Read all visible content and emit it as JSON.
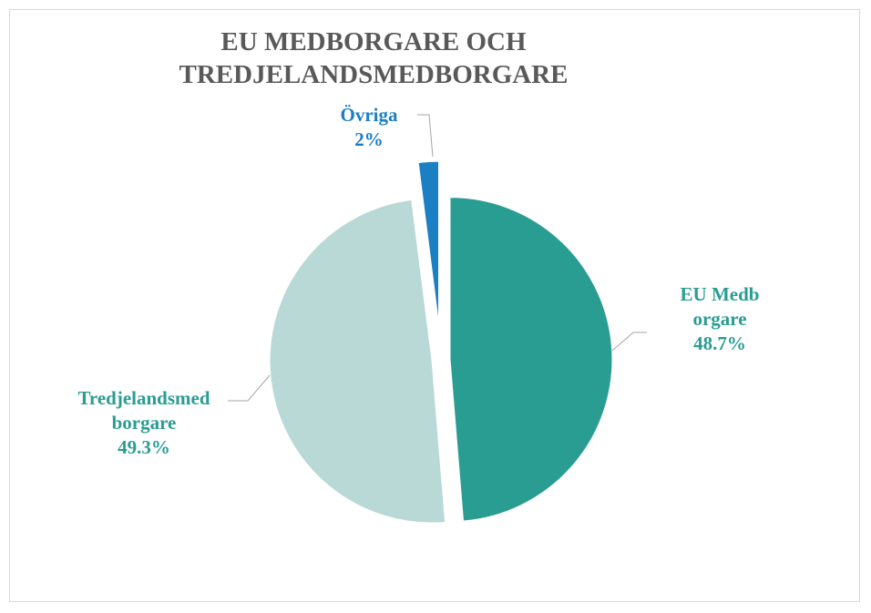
{
  "chart_data": {
    "type": "pie",
    "title": "EU MEDBORGARE OCH TREDJELANDSMEDBORGARE",
    "categories": [
      "EU Medborgare",
      "Tredjelandsmedborgare",
      "Övriga"
    ],
    "values": [
      48.7,
      49.3,
      2
    ],
    "value_labels": [
      "48.7%",
      "49.3%",
      "2%"
    ],
    "colors": [
      "#2a9d93",
      "#b9d9d6",
      "#1b7fc4"
    ]
  }
}
